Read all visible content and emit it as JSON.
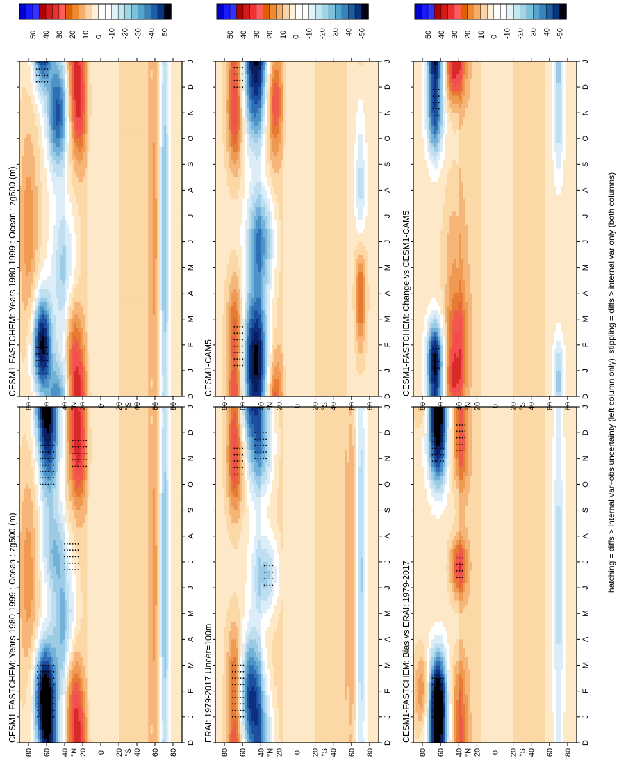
{
  "figure": {
    "footer": "hatching = diffs > internal var+obs uncertainty (left column only); stippling = diffs > internal var only (both columns)"
  },
  "chart_data": [
    {
      "type": "heatmap",
      "title": "CESM1-FASTCHEM: Years 1980-1999 : Ocean : zg500 (m)",
      "x_ticks": [
        "D",
        "J",
        "F",
        "M",
        "A",
        "M",
        "J",
        "J",
        "A",
        "S",
        "O",
        "N",
        "D",
        "J"
      ],
      "y_ticks": [
        "80",
        "60",
        "40",
        "20",
        "0",
        "20",
        "40",
        "60",
        "80"
      ],
      "y_hemis": {
        "north": "°N",
        "south": "°S"
      },
      "colorbar": {
        "ticks": [
          "50",
          "40",
          "30",
          "20",
          "10",
          "0",
          "-10",
          "-20",
          "-30",
          "-40",
          "-50"
        ]
      },
      "anomalies": [
        {
          "lat": 62,
          "month": 2.0,
          "value": -55,
          "sigma_lat": 8,
          "sigma_m": 1.3
        },
        {
          "lat": 58,
          "month": 11.5,
          "value": -40,
          "sigma_lat": 8,
          "sigma_m": 1.5
        },
        {
          "lat": 52,
          "month": 7.5,
          "value": -20,
          "sigma_lat": 10,
          "sigma_m": 1.2
        },
        {
          "lat": 40,
          "month": 4.5,
          "value": -25,
          "sigma_lat": 10,
          "sigma_m": 1.8
        },
        {
          "lat": 25,
          "month": 11.5,
          "value": 30,
          "sigma_lat": 6,
          "sigma_m": 1.5
        },
        {
          "lat": 30,
          "month": 2.0,
          "value": 20,
          "sigma_lat": 6,
          "sigma_m": 1.5
        },
        {
          "lat": 80,
          "month": 6.5,
          "value": 15,
          "sigma_lat": 8,
          "sigma_m": 3.0
        },
        {
          "lat": -70,
          "month": 6.5,
          "value": -25,
          "sigma_lat": 4,
          "sigma_m": 6.0
        },
        {
          "lat": -60,
          "month": 6.5,
          "value": 15,
          "sigma_lat": 5,
          "sigma_m": 6.0
        }
      ],
      "dots": [
        {
          "lat": 62,
          "month": 2.0,
          "dlat": 10,
          "dm": 1.0
        },
        {
          "lat": 60,
          "month": 10.8,
          "dlat": 8,
          "dm": 0.8
        },
        {
          "lat": 33,
          "month": 7.3,
          "dlat": 8,
          "dm": 0.6
        },
        {
          "lat": 24,
          "month": 11.3,
          "dlat": 8,
          "dm": 0.6
        }
      ]
    },
    {
      "type": "heatmap",
      "title": "CESM1-FASTCHEM: Years 1980-1999 : Ocean : zg500 (m)",
      "x_ticks": [
        "D",
        "J",
        "F",
        "M",
        "A",
        "M",
        "J",
        "J",
        "A",
        "S",
        "O",
        "N",
        "D",
        "J"
      ],
      "y_ticks": [
        "80",
        "60",
        "40",
        "20",
        "0",
        "20",
        "40",
        "60",
        "80"
      ],
      "y_hemis": {
        "north": "°N",
        "south": "°S"
      },
      "colorbar": {
        "ticks": [
          "50",
          "40",
          "30",
          "20",
          "10",
          "0",
          "-10",
          "-20",
          "-30",
          "-40",
          "-50"
        ]
      },
      "anomalies": [
        {
          "lat": 65,
          "month": 2.0,
          "value": -55,
          "sigma_lat": 7,
          "sigma_m": 1.3
        },
        {
          "lat": 48,
          "month": 11.0,
          "value": -40,
          "sigma_lat": 8,
          "sigma_m": 1.5
        },
        {
          "lat": 40,
          "month": 5.0,
          "value": -20,
          "sigma_lat": 10,
          "sigma_m": 2.0
        },
        {
          "lat": 25,
          "month": 11.5,
          "value": 30,
          "sigma_lat": 6,
          "sigma_m": 1.5
        },
        {
          "lat": 30,
          "month": 2.0,
          "value": 18,
          "sigma_lat": 6,
          "sigma_m": 1.5
        },
        {
          "lat": 80,
          "month": 6.5,
          "value": 15,
          "sigma_lat": 8,
          "sigma_m": 3.0
        },
        {
          "lat": -70,
          "month": 6.5,
          "value": -25,
          "sigma_lat": 4,
          "sigma_m": 6.0
        },
        {
          "lat": -60,
          "month": 6.5,
          "value": 15,
          "sigma_lat": 5,
          "sigma_m": 6.0
        }
      ],
      "dots": [
        {
          "lat": 65,
          "month": 1.5,
          "dlat": 6,
          "dm": 0.6
        },
        {
          "lat": 65,
          "month": 12.7,
          "dlat": 6,
          "dm": 0.5
        }
      ]
    },
    {
      "type": "heatmap",
      "title": "ERAI: 1979-2017 Uncer=100m",
      "x_ticks": [
        "D",
        "J",
        "F",
        "M",
        "A",
        "M",
        "J",
        "J",
        "A",
        "S",
        "O",
        "N",
        "D",
        "J"
      ],
      "y_ticks": [
        "80",
        "60",
        "40",
        "20",
        "0",
        "20",
        "40",
        "60",
        "80"
      ],
      "y_hemis": {
        "north": "°N",
        "south": "°S"
      },
      "colorbar": {
        "ticks": [
          "50",
          "40",
          "30",
          "20",
          "10",
          "0",
          "-10",
          "-20",
          "-30",
          "-40",
          "-50"
        ]
      },
      "anomalies": [
        {
          "lat": 50,
          "month": 2.0,
          "value": -40,
          "sigma_lat": 10,
          "sigma_m": 1.5
        },
        {
          "lat": 40,
          "month": 11.5,
          "value": -30,
          "sigma_lat": 10,
          "sigma_m": 1.5
        },
        {
          "lat": 35,
          "month": 6.5,
          "value": -25,
          "sigma_lat": 10,
          "sigma_m": 1.2
        },
        {
          "lat": 68,
          "month": 11.0,
          "value": 30,
          "sigma_lat": 6,
          "sigma_m": 1.5
        },
        {
          "lat": 68,
          "month": 2.5,
          "value": 25,
          "sigma_lat": 6,
          "sigma_m": 1.5
        },
        {
          "lat": -70,
          "month": 6.5,
          "value": -20,
          "sigma_lat": 4,
          "sigma_m": 6.0
        },
        {
          "lat": -60,
          "month": 6.5,
          "value": 12,
          "sigma_lat": 5,
          "sigma_m": 6.0
        }
      ],
      "dots": [
        {
          "lat": 65,
          "month": 2.0,
          "dlat": 6,
          "dm": 1.0
        },
        {
          "lat": 40,
          "month": 11.5,
          "dlat": 6,
          "dm": 0.5
        },
        {
          "lat": 65,
          "month": 11.0,
          "dlat": 5,
          "dm": 0.6
        },
        {
          "lat": 32,
          "month": 6.5,
          "dlat": 5,
          "dm": 0.4
        }
      ]
    },
    {
      "type": "heatmap",
      "title": "CESM1-CAM5",
      "x_ticks": [
        "D",
        "J",
        "F",
        "M",
        "A",
        "M",
        "J",
        "J",
        "A",
        "S",
        "O",
        "N",
        "D",
        "J"
      ],
      "y_ticks": [
        "80",
        "60",
        "40",
        "20",
        "0",
        "20",
        "40",
        "60",
        "80"
      ],
      "y_hemis": {
        "north": "°N",
        "south": "°S"
      },
      "colorbar": {
        "ticks": [
          "50",
          "40",
          "30",
          "20",
          "10",
          "0",
          "-10",
          "-20",
          "-30",
          "-40",
          "-50"
        ]
      },
      "anomalies": [
        {
          "lat": 45,
          "month": 2.0,
          "value": -45,
          "sigma_lat": 10,
          "sigma_m": 1.5
        },
        {
          "lat": 40,
          "month": 6.0,
          "value": -35,
          "sigma_lat": 10,
          "sigma_m": 1.5
        },
        {
          "lat": 45,
          "month": 11.5,
          "value": -30,
          "sigma_lat": 10,
          "sigma_m": 1.5
        },
        {
          "lat": 68,
          "month": 11.0,
          "value": 30,
          "sigma_lat": 6,
          "sigma_m": 1.5
        },
        {
          "lat": 68,
          "month": 2.5,
          "value": 25,
          "sigma_lat": 6,
          "sigma_m": 1.5
        },
        {
          "lat": 25,
          "month": 11.5,
          "value": 25,
          "sigma_lat": 6,
          "sigma_m": 1.5
        },
        {
          "lat": -70,
          "month": 4.0,
          "value": 25,
          "sigma_lat": 4,
          "sigma_m": 1.5
        },
        {
          "lat": -70,
          "month": 8.0,
          "value": -15,
          "sigma_lat": 4,
          "sigma_m": 2.0
        }
      ],
      "dots": [
        {
          "lat": 65,
          "month": 2.0,
          "dlat": 5,
          "dm": 0.8
        },
        {
          "lat": 65,
          "month": 12.5,
          "dlat": 5,
          "dm": 0.5
        }
      ]
    },
    {
      "type": "heatmap",
      "title": "CESM1-FASTCHEM: Bias vs ERAI: 1979-2017",
      "x_ticks": [
        "D",
        "J",
        "F",
        "M",
        "A",
        "M",
        "J",
        "J",
        "A",
        "S",
        "O",
        "N",
        "D",
        "J"
      ],
      "y_ticks": [
        "80",
        "60",
        "40",
        "20",
        "0",
        "20",
        "40",
        "60",
        "80"
      ],
      "y_hemis": {
        "north": "°N",
        "south": "°S"
      },
      "colorbar": {
        "ticks": [
          "50",
          "40",
          "30",
          "20",
          "10",
          "0",
          "-10",
          "-20",
          "-30",
          "-40",
          "-50"
        ]
      },
      "anomalies": [
        {
          "lat": 63,
          "month": 1.8,
          "value": -60,
          "sigma_lat": 7,
          "sigma_m": 1.2
        },
        {
          "lat": 63,
          "month": 11.5,
          "value": -45,
          "sigma_lat": 7,
          "sigma_m": 1.2
        },
        {
          "lat": 40,
          "month": 6.8,
          "value": 28,
          "sigma_lat": 6,
          "sigma_m": 0.8
        },
        {
          "lat": 38,
          "month": 11.5,
          "value": 22,
          "sigma_lat": 6,
          "sigma_m": 1.2
        },
        {
          "lat": 40,
          "month": 2.0,
          "value": 15,
          "sigma_lat": 6,
          "sigma_m": 1.0
        },
        {
          "lat": 80,
          "month": 2.0,
          "value": 18,
          "sigma_lat": 6,
          "sigma_m": 1.0
        },
        {
          "lat": -70,
          "month": 6.5,
          "value": -15,
          "sigma_lat": 4,
          "sigma_m": 6.0
        }
      ],
      "dots": [
        {
          "lat": 63,
          "month": 1.8,
          "dlat": 6,
          "dm": 0.8
        },
        {
          "lat": 63,
          "month": 11.5,
          "dlat": 6,
          "dm": 0.6
        },
        {
          "lat": 38,
          "month": 11.8,
          "dlat": 5,
          "dm": 0.5
        },
        {
          "lat": 40,
          "month": 6.8,
          "dlat": 4,
          "dm": 0.4
        }
      ]
    },
    {
      "type": "heatmap",
      "title": "CESM1-FASTCHEM: Change vs CESM1-CAM5",
      "x_ticks": [
        "D",
        "J",
        "F",
        "M",
        "A",
        "M",
        "J",
        "J",
        "A",
        "S",
        "O",
        "N",
        "D",
        "J"
      ],
      "y_ticks": [
        "80",
        "60",
        "40",
        "20",
        "0",
        "20",
        "40",
        "60",
        "80"
      ],
      "y_hemis": {
        "north": "°N",
        "south": "°S"
      },
      "colorbar": {
        "ticks": [
          "50",
          "40",
          "30",
          "20",
          "10",
          "0",
          "-10",
          "-20",
          "-30",
          "-40",
          "-50"
        ]
      },
      "anomalies": [
        {
          "lat": 66,
          "month": 1.5,
          "value": -50,
          "sigma_lat": 6,
          "sigma_m": 1.0
        },
        {
          "lat": 66,
          "month": 11.0,
          "value": -40,
          "sigma_lat": 6,
          "sigma_m": 1.2
        },
        {
          "lat": 42,
          "month": 2.0,
          "value": 25,
          "sigma_lat": 8,
          "sigma_m": 1.5
        },
        {
          "lat": 45,
          "month": 12.5,
          "value": 20,
          "sigma_lat": 6,
          "sigma_m": 0.8
        },
        {
          "lat": 45,
          "month": 5.5,
          "value": 10,
          "sigma_lat": 8,
          "sigma_m": 2.0
        },
        {
          "lat": -70,
          "month": 1.0,
          "value": -15,
          "sigma_lat": 4,
          "sigma_m": 1.0
        },
        {
          "lat": -70,
          "month": 10.5,
          "value": -15,
          "sigma_lat": 4,
          "sigma_m": 1.5
        }
      ],
      "dots": [
        {
          "lat": 66,
          "month": 1.5,
          "dlat": 4,
          "dm": 0.4
        },
        {
          "lat": 66,
          "month": 11.5,
          "dlat": 4,
          "dm": 0.6
        }
      ]
    }
  ]
}
